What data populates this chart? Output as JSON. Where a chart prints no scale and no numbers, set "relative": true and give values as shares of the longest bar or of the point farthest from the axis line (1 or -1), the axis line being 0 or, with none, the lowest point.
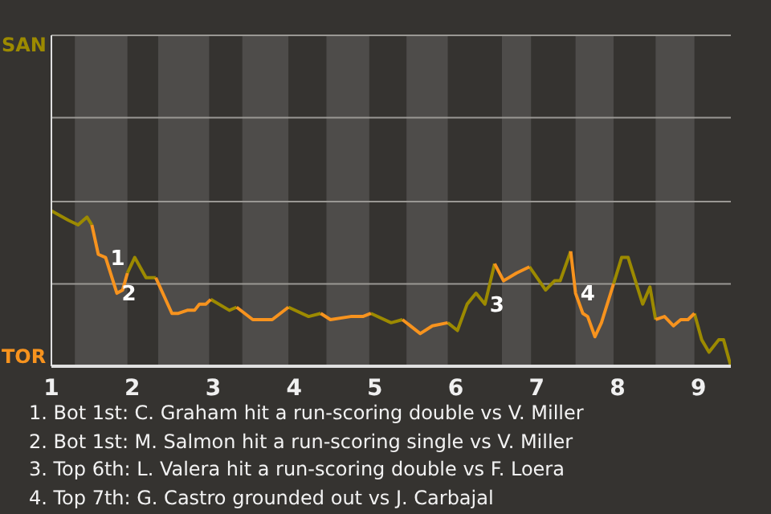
{
  "chart_data": {
    "type": "line",
    "relative": true,
    "x": [
      1,
      1.21,
      1.33,
      1.44,
      1.5,
      1.58,
      1.67,
      1.81,
      1.88,
      1.94,
      2.03,
      2.17,
      2.29,
      2.49,
      2.57,
      2.68,
      2.77,
      2.83,
      2.91,
      2.97,
      3.2,
      3.29,
      3.49,
      3.73,
      3.93,
      4.18,
      4.33,
      4.45,
      4.7,
      4.85,
      4.95,
      5.2,
      5.34,
      5.56,
      5.71,
      5.9,
      6.02,
      6.14,
      6.25,
      6.36,
      6.48,
      6.59,
      6.75,
      6.91,
      7.11,
      7.22,
      7.29,
      7.42,
      7.48,
      7.57,
      7.63,
      7.72,
      7.8,
      7.95,
      8.05,
      8.13,
      8.31,
      8.4,
      8.47,
      8.58,
      8.69,
      8.78,
      8.87,
      8.95,
      9.04,
      9.13,
      9.25,
      9.31,
      9.4
    ],
    "series": [
      {
        "name": "SAN",
        "color": "#9c8a00",
        "values": [
          1,
          0.94,
          0.91,
          0.96,
          0.91,
          null,
          null,
          null,
          null,
          0.6,
          0.7,
          0.57,
          0.57,
          null,
          null,
          null,
          null,
          null,
          null,
          0.43,
          0.36,
          0.38,
          null,
          null,
          0.38,
          0.32,
          0.34,
          null,
          null,
          null,
          0.34,
          0.28,
          0.3,
          null,
          null,
          0.28,
          0.23,
          0.4,
          0.47,
          0.4,
          0.66,
          null,
          null,
          0.64,
          0.49,
          0.55,
          0.55,
          0.74,
          null,
          null,
          null,
          null,
          null,
          0.53,
          0.7,
          0.7,
          0.4,
          0.51,
          0.3,
          null,
          null,
          null,
          null,
          0.34,
          0.17,
          0.09,
          0.17,
          0.17,
          0
        ]
      },
      {
        "name": "TOR",
        "color": "#f7931e",
        "values": [
          null,
          null,
          null,
          null,
          0.91,
          0.72,
          0.7,
          0.47,
          0.49,
          0.6,
          null,
          null,
          0.57,
          0.34,
          0.34,
          0.36,
          0.36,
          0.4,
          0.4,
          0.43,
          null,
          0.38,
          0.3,
          0.3,
          0.38,
          null,
          0.34,
          0.3,
          0.32,
          0.32,
          0.34,
          null,
          0.3,
          0.21,
          0.26,
          0.28,
          null,
          null,
          null,
          null,
          0.66,
          0.55,
          0.6,
          0.64,
          null,
          null,
          null,
          0.74,
          0.47,
          0.34,
          0.32,
          0.19,
          0.28,
          0.53,
          null,
          null,
          null,
          null,
          0.3,
          0.32,
          0.26,
          0.3,
          0.3,
          0.34,
          null,
          null,
          null,
          null,
          null
        ]
      }
    ],
    "xlim": [
      1,
      9.4
    ],
    "xticks": [
      1,
      2,
      3,
      4,
      5,
      6,
      7,
      8,
      9
    ],
    "legend": "left",
    "ref_lines": [
      {
        "axis": "y",
        "value": 0.53,
        "color": "#9a9894"
      },
      {
        "axis": "y",
        "value": 1.06,
        "color": "#9a9894"
      },
      {
        "axis": "y",
        "value": 1.6,
        "color": "#9a9894"
      },
      {
        "axis": "y",
        "value": 2.13,
        "color": "#9a9894"
      }
    ],
    "bands": [
      {
        "axis": "x",
        "from": 1.29,
        "to": 1.94,
        "color": "#4e4c4a"
      },
      {
        "axis": "x",
        "from": 2.32,
        "to": 2.95,
        "color": "#4e4c4a"
      },
      {
        "axis": "x",
        "from": 3.36,
        "to": 3.93,
        "color": "#4e4c4a"
      },
      {
        "axis": "x",
        "from": 4.4,
        "to": 4.93,
        "color": "#4e4c4a"
      },
      {
        "axis": "x",
        "from": 5.39,
        "to": 5.9,
        "color": "#4e4c4a"
      },
      {
        "axis": "x",
        "from": 6.57,
        "to": 6.93,
        "color": "#4e4c4a"
      },
      {
        "axis": "x",
        "from": 7.48,
        "to": 7.95,
        "color": "#4e4c4a"
      },
      {
        "axis": "x",
        "from": 8.47,
        "to": 8.95,
        "color": "#4e4c4a"
      }
    ],
    "annotations": [
      {
        "text": "1",
        "x": 1.67,
        "y": 0.7
      },
      {
        "text": "2",
        "x": 1.81,
        "y": 0.47
      },
      {
        "text": "3",
        "x": 6.36,
        "y": 0.4
      },
      {
        "text": "4",
        "x": 7.48,
        "y": 0.47
      },
      "1. Bot 1st: C. Graham hit a run-scoring double vs V. Miller",
      "2. Bot 1st: M. Salmon hit a run-scoring single vs V. Miller",
      "3. Top 6th: L. Valera hit a run-scoring double vs F. Loera",
      "4. Top 7th: G. Castro grounded out vs J. Carbajal"
    ]
  }
}
